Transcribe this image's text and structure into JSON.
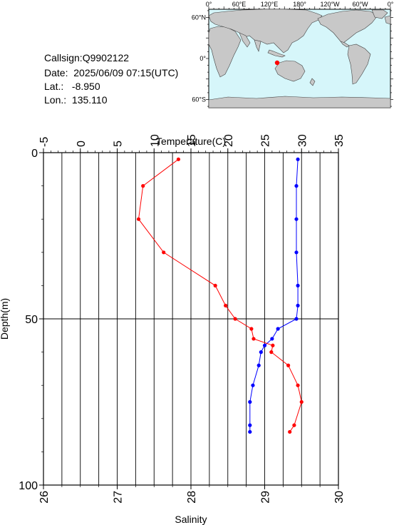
{
  "station": {
    "callsign_label": "Callsign:",
    "callsign": "Q9902122",
    "date_label": "Date:",
    "date": "2025/06/09 07:15(UTC)",
    "lat_label": "Lat.:",
    "lat": "-8.950",
    "lon_label": "Lon.:",
    "lon": "135.110"
  },
  "map": {
    "top_ticks": [
      "0°",
      "60°E",
      "120°E",
      "180°",
      "120°W",
      "60°W",
      "0°"
    ],
    "left_ticks": [
      "60°N",
      "0°",
      "60°S"
    ],
    "ocean_color": "#d6f6fa",
    "land_color": "#c8c8c8",
    "marker_color": "#ff0000"
  },
  "chart_data": {
    "type": "line",
    "temperature_axis": {
      "label": "Temperature(C)",
      "ticks": [
        "-5",
        "0",
        "5",
        "10",
        "15",
        "20",
        "25",
        "30",
        "35"
      ],
      "range": [
        -5,
        35
      ]
    },
    "salinity_axis": {
      "label": "Salinity",
      "ticks": [
        "26",
        "27",
        "28",
        "29",
        "30"
      ],
      "range": [
        26,
        30
      ]
    },
    "depth_axis": {
      "label": "Depth(m)",
      "ticks": [
        "0",
        "50",
        "100"
      ],
      "range": [
        0,
        100
      ]
    },
    "grid": true,
    "series": [
      {
        "quantity": "temperature",
        "color": "#ff0000",
        "points": [
          {
            "x": 29.5,
            "depth": 2
          },
          {
            "x": 29.3,
            "depth": 10
          },
          {
            "x": 29.3,
            "depth": 20
          },
          {
            "x": 29.3,
            "depth": 30
          },
          {
            "x": 29.5,
            "depth": 40
          },
          {
            "x": 29.5,
            "depth": 46
          },
          {
            "x": 29.3,
            "depth": 50
          },
          {
            "x": 26.8,
            "depth": 53
          },
          {
            "x": 26.0,
            "depth": 56
          },
          {
            "x": 25.0,
            "depth": 58
          },
          {
            "x": 24.5,
            "depth": 60
          },
          {
            "x": 24.2,
            "depth": 64
          },
          {
            "x": 23.4,
            "depth": 70
          },
          {
            "x": 23.0,
            "depth": 75
          },
          {
            "x": 23.0,
            "depth": 82
          },
          {
            "x": 23.0,
            "depth": 84
          }
        ]
      },
      {
        "quantity": "salinity",
        "color": "#ff0000",
        "points": [
          {
            "x": 27.83,
            "depth": 2
          },
          {
            "x": 27.35,
            "depth": 10
          },
          {
            "x": 27.29,
            "depth": 20
          },
          {
            "x": 27.63,
            "depth": 30
          },
          {
            "x": 28.33,
            "depth": 40
          },
          {
            "x": 28.47,
            "depth": 46
          },
          {
            "x": 28.6,
            "depth": 50
          },
          {
            "x": 28.82,
            "depth": 53
          },
          {
            "x": 28.85,
            "depth": 56
          },
          {
            "x": 29.11,
            "depth": 58
          },
          {
            "x": 29.09,
            "depth": 60
          },
          {
            "x": 29.32,
            "depth": 64
          },
          {
            "x": 29.45,
            "depth": 70
          },
          {
            "x": 29.5,
            "depth": 75
          },
          {
            "x": 29.4,
            "depth": 82
          },
          {
            "x": 29.34,
            "depth": 84
          }
        ]
      }
    ]
  }
}
